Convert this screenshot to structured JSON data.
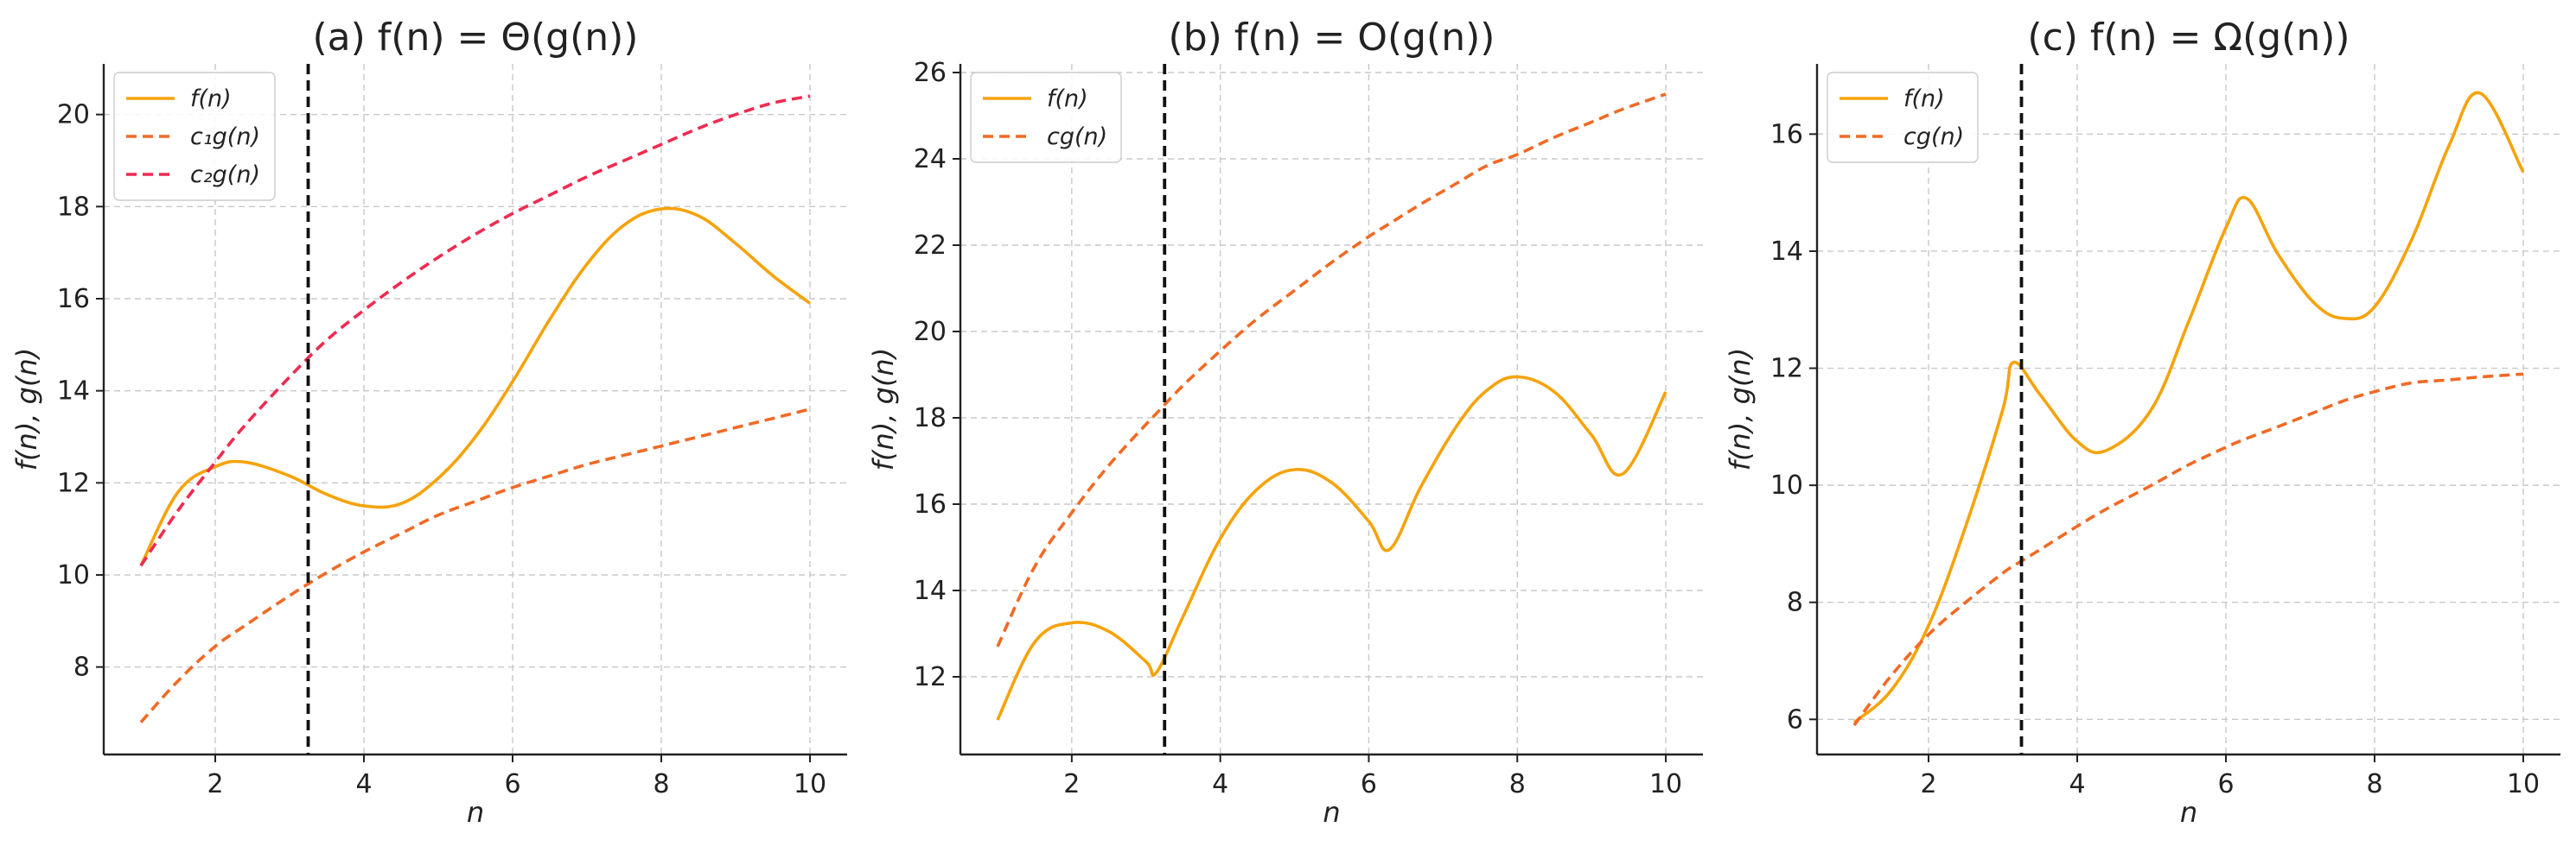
{
  "chart_data": [
    {
      "type": "line",
      "title": "(a) f(n) = Θ(g(n))",
      "xlabel": "n",
      "ylabel": "f(n), g(n)",
      "xlim": [
        0.5,
        10.5
      ],
      "ylim": [
        6.1,
        21.1
      ],
      "xticks": [
        2,
        4,
        6,
        8,
        10
      ],
      "yticks": [
        8,
        10,
        12,
        14,
        16,
        18,
        20
      ],
      "grid": true,
      "legend_position": "top-left",
      "vline_x": 3.25,
      "x": [
        1,
        1.5,
        2,
        2.4,
        3,
        3.5,
        4,
        4.5,
        5,
        5.5,
        6,
        6.5,
        7,
        7.5,
        8,
        8.5,
        9,
        9.5,
        10
      ],
      "series": [
        {
          "name": "f(n)",
          "color": "#f5a30a",
          "style": "solid",
          "values": [
            10.2,
            11.8,
            12.35,
            12.45,
            12.15,
            11.75,
            11.5,
            11.55,
            12.1,
            13.0,
            14.2,
            15.55,
            16.75,
            17.6,
            17.95,
            17.8,
            17.2,
            16.5,
            15.9
          ]
        },
        {
          "name": "c₁g(n)",
          "color": "#f06a25",
          "style": "dashed",
          "values": [
            6.8,
            7.7,
            8.45,
            8.9,
            9.55,
            10.05,
            10.5,
            10.9,
            11.3,
            11.6,
            11.9,
            12.15,
            12.4,
            12.6,
            12.8,
            13.0,
            13.2,
            13.4,
            13.6
          ]
        },
        {
          "name": "c₂g(n)",
          "color": "#ee2b50",
          "style": "dashed",
          "values": [
            10.2,
            11.4,
            12.45,
            13.25,
            14.3,
            15.1,
            15.75,
            16.35,
            16.9,
            17.4,
            17.85,
            18.25,
            18.65,
            19.0,
            19.35,
            19.7,
            20.0,
            20.25,
            20.4
          ]
        }
      ]
    },
    {
      "type": "line",
      "title": "(b) f(n) = O(g(n))",
      "xlabel": "n",
      "ylabel": "f(n), g(n)",
      "xlim": [
        0.5,
        10.5
      ],
      "ylim": [
        10.2,
        26.2
      ],
      "xticks": [
        2,
        4,
        6,
        8,
        10
      ],
      "yticks": [
        12,
        14,
        16,
        18,
        20,
        22,
        24,
        26
      ],
      "grid": true,
      "legend_position": "top-left",
      "vline_x": 3.25,
      "x": [
        1,
        1.5,
        2,
        2.5,
        3,
        3.14,
        3.5,
        4,
        4.5,
        5,
        5.5,
        6,
        6.28,
        6.7,
        7.2,
        7.6,
        8,
        8.5,
        9,
        9.42,
        10
      ],
      "series": [
        {
          "name": "f(n)",
          "color": "#f5a30a",
          "style": "solid",
          "values": [
            11.0,
            12.8,
            13.25,
            13.05,
            12.35,
            12.1,
            13.4,
            15.2,
            16.35,
            16.8,
            16.5,
            15.6,
            14.95,
            16.4,
            17.85,
            18.65,
            18.95,
            18.6,
            17.6,
            16.7,
            18.6
          ]
        },
        {
          "name": "cg(n)",
          "color": "#f06a25",
          "style": "dashed",
          "values": [
            12.7,
            14.55,
            15.8,
            16.9,
            17.85,
            18.1,
            18.75,
            19.55,
            20.3,
            20.95,
            21.6,
            22.2,
            22.5,
            22.95,
            23.45,
            23.85,
            24.1,
            24.5,
            24.85,
            25.15,
            25.5
          ]
        }
      ]
    },
    {
      "type": "line",
      "title": "(c) f(n) = Ω(g(n))",
      "xlabel": "n",
      "ylabel": "f(n), g(n)",
      "xlim": [
        0.5,
        10.5
      ],
      "ylim": [
        5.4,
        17.2
      ],
      "xticks": [
        2,
        4,
        6,
        8,
        10
      ],
      "yticks": [
        6,
        8,
        10,
        12,
        14,
        16
      ],
      "grid": true,
      "legend_position": "top-left",
      "vline_x": 3.25,
      "x": [
        1,
        1.5,
        2,
        2.5,
        3,
        3.14,
        3.5,
        4,
        4.4,
        5,
        5.5,
        6,
        6.28,
        6.7,
        7.2,
        7.6,
        8,
        8.5,
        9,
        9.42,
        10
      ],
      "series": [
        {
          "name": "f(n)",
          "color": "#f5a30a",
          "style": "solid",
          "values": [
            5.95,
            6.5,
            7.6,
            9.3,
            11.3,
            12.1,
            11.55,
            10.75,
            10.6,
            11.3,
            12.8,
            14.4,
            14.9,
            13.95,
            13.1,
            12.85,
            13.05,
            14.2,
            15.8,
            16.7,
            15.35
          ]
        },
        {
          "name": "cg(n)",
          "color": "#f06a25",
          "style": "dashed",
          "values": [
            5.9,
            6.75,
            7.45,
            8.0,
            8.5,
            8.62,
            8.9,
            9.3,
            9.6,
            10.0,
            10.35,
            10.65,
            10.8,
            11.0,
            11.25,
            11.45,
            11.6,
            11.75,
            11.8,
            11.85,
            11.9
          ]
        }
      ]
    }
  ]
}
